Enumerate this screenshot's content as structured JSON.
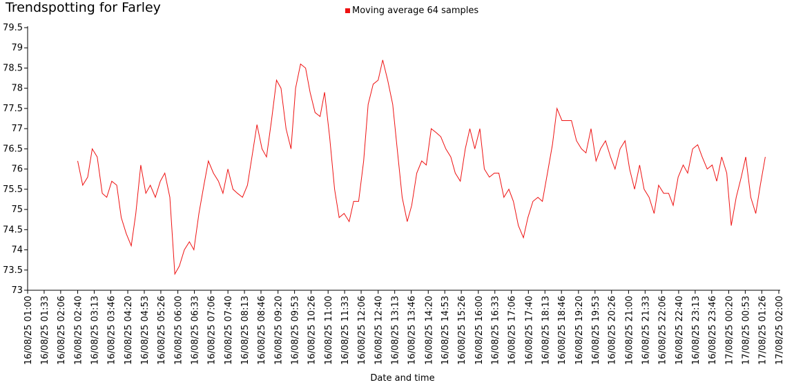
{
  "chart_data": {
    "type": "line",
    "title": "Trendspotting for Farley",
    "xlabel": "Date and time",
    "legend": "top",
    "ylim": [
      73,
      79.5
    ],
    "yticks": [
      73,
      73.5,
      74,
      74.5,
      75,
      75.5,
      76,
      76.5,
      77,
      77.5,
      78,
      78.5,
      79,
      79.5
    ],
    "xlim": [
      "16/08/25 01:00",
      "17/08/25 02:00"
    ],
    "xticks": [
      "16/08/25 01:00",
      "16/08/25 01:33",
      "16/08/25 02:06",
      "16/08/25 02:40",
      "16/08/25 03:13",
      "16/08/25 03:46",
      "16/08/25 04:20",
      "16/08/25 04:53",
      "16/08/25 05:26",
      "16/08/25 06:00",
      "16/08/25 06:33",
      "16/08/25 07:06",
      "16/08/25 07:40",
      "16/08/25 08:13",
      "16/08/25 08:46",
      "16/08/25 09:20",
      "16/08/25 09:53",
      "16/08/25 10:26",
      "16/08/25 11:00",
      "16/08/25 11:33",
      "16/08/25 12:06",
      "16/08/25 12:40",
      "16/08/25 13:13",
      "16/08/25 13:46",
      "16/08/25 14:20",
      "16/08/25 14:53",
      "16/08/25 15:26",
      "16/08/25 16:00",
      "16/08/25 16:33",
      "16/08/25 17:06",
      "16/08/25 17:40",
      "16/08/25 18:13",
      "16/08/25 18:46",
      "16/08/25 19:20",
      "16/08/25 19:53",
      "16/08/25 20:26",
      "16/08/25 21:00",
      "16/08/25 21:33",
      "16/08/25 22:06",
      "16/08/25 22:40",
      "16/08/25 23:13",
      "16/08/25 23:46",
      "17/08/25 00:20",
      "17/08/25 00:53",
      "17/08/25 01:26",
      "17/08/25 02:00"
    ],
    "x": [
      "16/08/25 02:40",
      "16/08/25 02:50",
      "16/08/25 03:00",
      "16/08/25 03:09",
      "16/08/25 03:19",
      "16/08/25 03:29",
      "16/08/25 03:38",
      "16/08/25 03:48",
      "16/08/25 03:58",
      "16/08/25 04:07",
      "16/08/25 04:17",
      "16/08/25 04:27",
      "16/08/25 04:36",
      "16/08/25 04:46",
      "16/08/25 04:56",
      "16/08/25 05:05",
      "16/08/25 05:15",
      "16/08/25 05:25",
      "16/08/25 05:34",
      "16/08/25 05:44",
      "16/08/25 05:54",
      "16/08/25 06:03",
      "16/08/25 06:13",
      "16/08/25 06:23",
      "16/08/25 06:32",
      "16/08/25 06:42",
      "16/08/25 06:52",
      "16/08/25 07:01",
      "16/08/25 07:11",
      "16/08/25 07:21",
      "16/08/25 07:30",
      "16/08/25 07:40",
      "16/08/25 07:50",
      "16/08/25 07:59",
      "16/08/25 08:09",
      "16/08/25 08:19",
      "16/08/25 08:28",
      "16/08/25 08:38",
      "16/08/25 08:48",
      "16/08/25 08:57",
      "16/08/25 09:07",
      "16/08/25 09:17",
      "16/08/25 09:26",
      "16/08/25 09:36",
      "16/08/25 09:46",
      "16/08/25 09:55",
      "16/08/25 10:05",
      "16/08/25 10:15",
      "16/08/25 10:24",
      "16/08/25 10:34",
      "16/08/25 10:44",
      "16/08/25 10:53",
      "16/08/25 11:03",
      "16/08/25 11:13",
      "16/08/25 11:22",
      "16/08/25 11:32",
      "16/08/25 11:42",
      "16/08/25 11:51",
      "16/08/25 12:01",
      "16/08/25 12:11",
      "16/08/25 12:20",
      "16/08/25 12:30",
      "16/08/25 12:40",
      "16/08/25 12:49",
      "16/08/25 12:59",
      "16/08/25 13:09",
      "16/08/25 13:18",
      "16/08/25 13:28",
      "16/08/25 13:38",
      "16/08/25 13:47",
      "16/08/25 13:57",
      "16/08/25 14:07",
      "16/08/25 14:16",
      "16/08/25 14:26",
      "16/08/25 14:36",
      "16/08/25 14:45",
      "16/08/25 14:55",
      "16/08/25 15:05",
      "16/08/25 15:14",
      "16/08/25 15:24",
      "16/08/25 15:34",
      "16/08/25 15:43",
      "16/08/25 15:53",
      "16/08/25 16:03",
      "16/08/25 16:12",
      "16/08/25 16:22",
      "16/08/25 16:32",
      "16/08/25 16:41",
      "16/08/25 16:51",
      "16/08/25 17:01",
      "16/08/25 17:10",
      "16/08/25 17:20",
      "16/08/25 17:30",
      "16/08/25 17:39",
      "16/08/25 17:49",
      "16/08/25 17:59",
      "16/08/25 18:08",
      "16/08/25 18:18",
      "16/08/25 18:28",
      "16/08/25 18:37",
      "16/08/25 18:47",
      "16/08/25 18:57",
      "16/08/25 19:06",
      "16/08/25 19:16",
      "16/08/25 19:26",
      "16/08/25 19:35",
      "16/08/25 19:45",
      "16/08/25 19:55",
      "16/08/25 20:04",
      "16/08/25 20:14",
      "16/08/25 20:24",
      "16/08/25 20:33",
      "16/08/25 20:43",
      "16/08/25 20:53",
      "16/08/25 21:02",
      "16/08/25 21:12",
      "16/08/25 21:22",
      "16/08/25 21:31",
      "16/08/25 21:41",
      "16/08/25 21:51",
      "16/08/25 22:00",
      "16/08/25 22:10",
      "16/08/25 22:20",
      "16/08/25 22:29",
      "16/08/25 22:39",
      "16/08/25 22:49",
      "16/08/25 22:58",
      "16/08/25 23:08",
      "16/08/25 23:18",
      "16/08/25 23:27",
      "16/08/25 23:37",
      "16/08/25 23:47",
      "16/08/25 23:56",
      "17/08/25 00:06",
      "17/08/25 00:16",
      "17/08/25 00:25",
      "17/08/25 00:35",
      "17/08/25 00:45",
      "17/08/25 00:54",
      "17/08/25 01:04",
      "17/08/25 01:14",
      "17/08/25 01:23",
      "17/08/25 01:33"
    ],
    "series": [
      {
        "name": "Moving average 64 samples",
        "color": "#ee1111",
        "values": [
          76.2,
          75.6,
          75.8,
          76.5,
          76.3,
          75.4,
          75.3,
          75.7,
          75.6,
          74.8,
          74.4,
          74.1,
          74.9,
          76.1,
          75.4,
          75.6,
          75.3,
          75.7,
          75.9,
          75.3,
          73.4,
          73.6,
          74.0,
          74.2,
          74.0,
          74.9,
          75.6,
          76.2,
          75.9,
          75.7,
          75.4,
          76.0,
          75.5,
          75.4,
          75.3,
          75.6,
          76.3,
          77.1,
          76.5,
          76.3,
          77.2,
          78.2,
          78.0,
          77.0,
          76.5,
          78.0,
          78.6,
          78.5,
          77.9,
          77.4,
          77.3,
          77.9,
          76.8,
          75.5,
          74.8,
          74.9,
          74.7,
          75.2,
          75.2,
          76.2,
          77.6,
          78.1,
          78.2,
          78.7,
          78.2,
          77.6,
          76.5,
          75.3,
          74.7,
          75.1,
          75.9,
          76.2,
          76.1,
          77.0,
          76.9,
          76.8,
          76.5,
          76.3,
          75.9,
          75.7,
          76.5,
          77.0,
          76.5,
          77.0,
          76.0,
          75.8,
          75.9,
          75.9,
          75.3,
          75.5,
          75.2,
          74.6,
          74.3,
          74.8,
          75.2,
          75.3,
          75.2,
          75.9,
          76.6,
          77.5,
          77.2,
          77.2,
          77.2,
          76.7,
          76.5,
          76.4,
          77.0,
          76.2,
          76.5,
          76.7,
          76.3,
          76.0,
          76.5,
          76.7,
          76.0,
          75.5,
          76.1,
          75.5,
          75.3,
          74.9,
          75.6,
          75.4,
          75.4,
          75.1,
          75.8,
          76.1,
          75.9,
          76.5,
          76.6,
          76.3,
          76.0,
          76.1,
          75.7,
          76.3,
          75.9,
          74.6,
          75.3,
          75.8,
          76.3,
          75.3,
          74.9,
          75.6,
          76.3
        ]
      }
    ]
  }
}
